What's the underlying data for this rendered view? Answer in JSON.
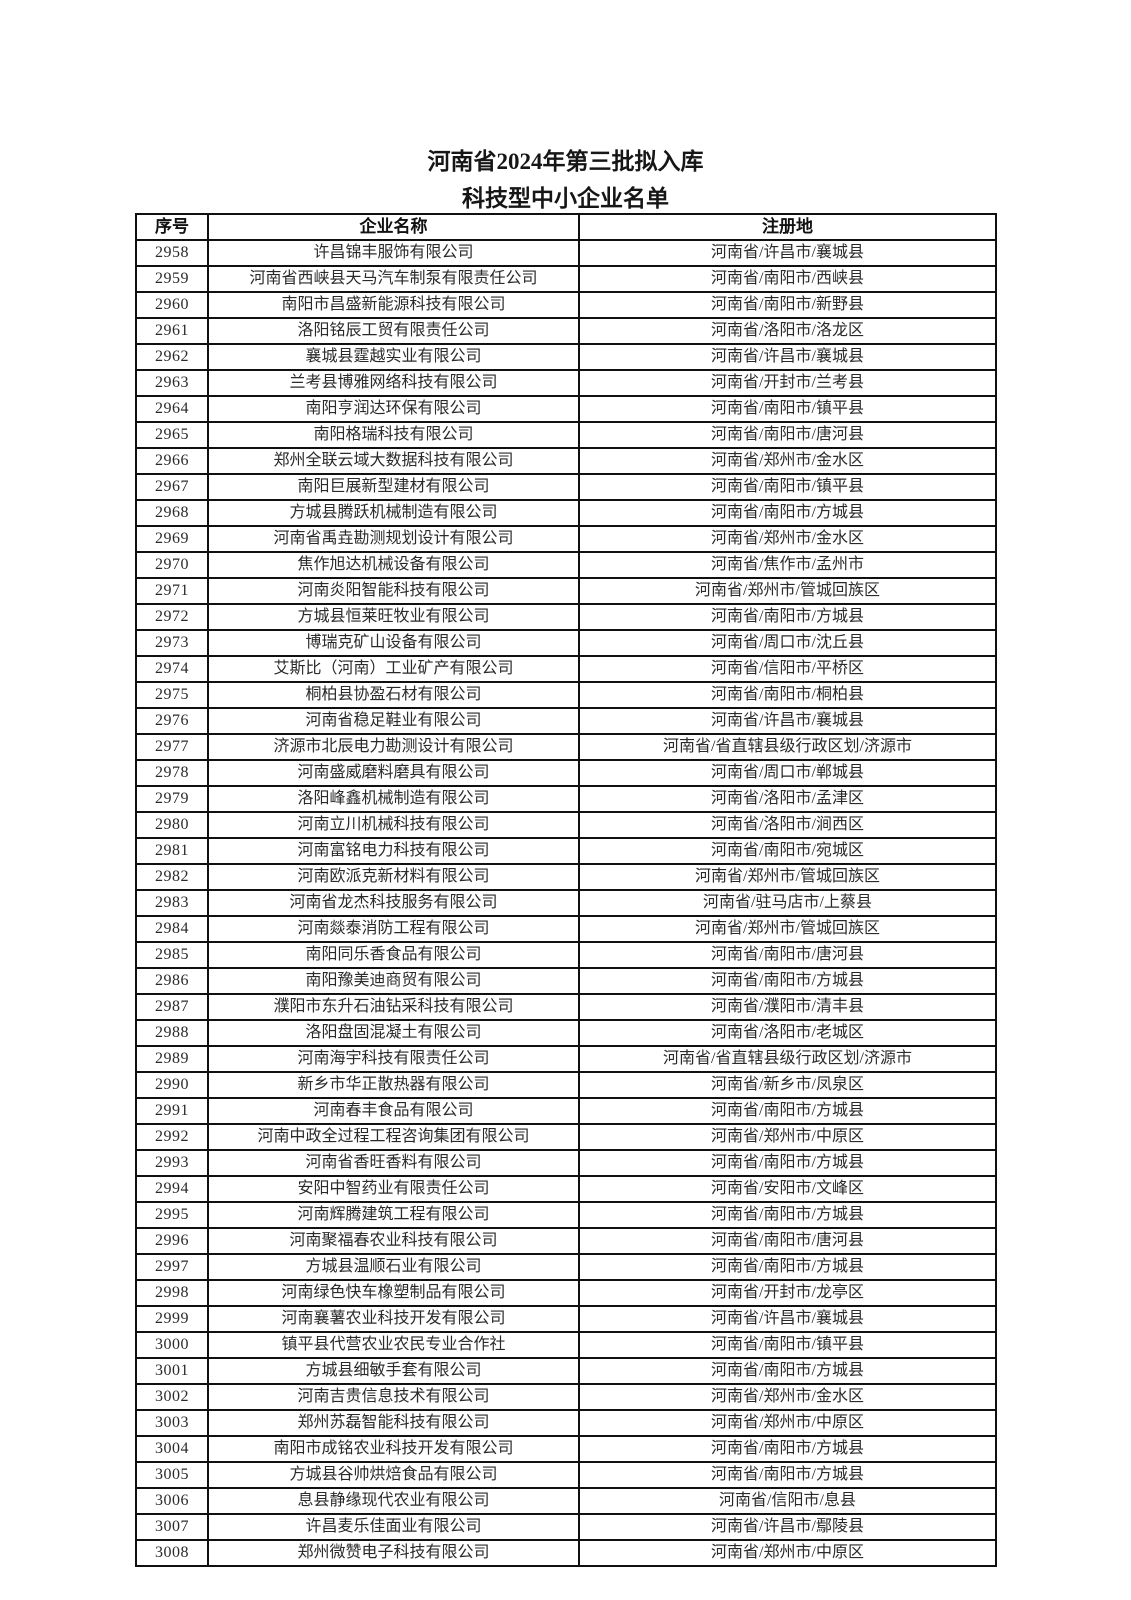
{
  "page": {
    "title_line1": "河南省2024年第三批拟入库",
    "title_line2": "科技型中小企业名单"
  },
  "table": {
    "headers": [
      "序号",
      "企业名称",
      "注册地"
    ],
    "rows": [
      {
        "no": "2958",
        "name": "许昌锦丰服饰有限公司",
        "location": "河南省/许昌市/襄城县"
      },
      {
        "no": "2959",
        "name": "河南省西峡县天马汽车制泵有限责任公司",
        "location": "河南省/南阳市/西峡县"
      },
      {
        "no": "2960",
        "name": "南阳市昌盛新能源科技有限公司",
        "location": "河南省/南阳市/新野县"
      },
      {
        "no": "2961",
        "name": "洛阳铭辰工贸有限责任公司",
        "location": "河南省/洛阳市/洛龙区"
      },
      {
        "no": "2962",
        "name": "襄城县霆越实业有限公司",
        "location": "河南省/许昌市/襄城县"
      },
      {
        "no": "2963",
        "name": "兰考县博雅网络科技有限公司",
        "location": "河南省/开封市/兰考县"
      },
      {
        "no": "2964",
        "name": "南阳亨润达环保有限公司",
        "location": "河南省/南阳市/镇平县"
      },
      {
        "no": "2965",
        "name": "南阳格瑞科技有限公司",
        "location": "河南省/南阳市/唐河县"
      },
      {
        "no": "2966",
        "name": "郑州全联云域大数据科技有限公司",
        "location": "河南省/郑州市/金水区"
      },
      {
        "no": "2967",
        "name": "南阳巨展新型建材有限公司",
        "location": "河南省/南阳市/镇平县"
      },
      {
        "no": "2968",
        "name": "方城县腾跃机械制造有限公司",
        "location": "河南省/南阳市/方城县"
      },
      {
        "no": "2969",
        "name": "河南省禹垚勘测规划设计有限公司",
        "location": "河南省/郑州市/金水区"
      },
      {
        "no": "2970",
        "name": "焦作旭达机械设备有限公司",
        "location": "河南省/焦作市/孟州市"
      },
      {
        "no": "2971",
        "name": "河南炎阳智能科技有限公司",
        "location": "河南省/郑州市/管城回族区"
      },
      {
        "no": "2972",
        "name": "方城县恒莱旺牧业有限公司",
        "location": "河南省/南阳市/方城县"
      },
      {
        "no": "2973",
        "name": "博瑞克矿山设备有限公司",
        "location": "河南省/周口市/沈丘县"
      },
      {
        "no": "2974",
        "name": "艾斯比（河南）工业矿产有限公司",
        "location": "河南省/信阳市/平桥区"
      },
      {
        "no": "2975",
        "name": "桐柏县协盈石材有限公司",
        "location": "河南省/南阳市/桐柏县"
      },
      {
        "no": "2976",
        "name": "河南省稳足鞋业有限公司",
        "location": "河南省/许昌市/襄城县"
      },
      {
        "no": "2977",
        "name": "济源市北辰电力勘测设计有限公司",
        "location": "河南省/省直辖县级行政区划/济源市"
      },
      {
        "no": "2978",
        "name": "河南盛威磨料磨具有限公司",
        "location": "河南省/周口市/郸城县"
      },
      {
        "no": "2979",
        "name": "洛阳峰鑫机械制造有限公司",
        "location": "河南省/洛阳市/孟津区"
      },
      {
        "no": "2980",
        "name": "河南立川机械科技有限公司",
        "location": "河南省/洛阳市/涧西区"
      },
      {
        "no": "2981",
        "name": "河南富铭电力科技有限公司",
        "location": "河南省/南阳市/宛城区"
      },
      {
        "no": "2982",
        "name": "河南欧派克新材料有限公司",
        "location": "河南省/郑州市/管城回族区"
      },
      {
        "no": "2983",
        "name": "河南省龙杰科技服务有限公司",
        "location": "河南省/驻马店市/上蔡县"
      },
      {
        "no": "2984",
        "name": "河南燚泰消防工程有限公司",
        "location": "河南省/郑州市/管城回族区"
      },
      {
        "no": "2985",
        "name": "南阳同乐香食品有限公司",
        "location": "河南省/南阳市/唐河县"
      },
      {
        "no": "2986",
        "name": "南阳豫美迪商贸有限公司",
        "location": "河南省/南阳市/方城县"
      },
      {
        "no": "2987",
        "name": "濮阳市东升石油钻采科技有限公司",
        "location": "河南省/濮阳市/清丰县"
      },
      {
        "no": "2988",
        "name": "洛阳盘固混凝土有限公司",
        "location": "河南省/洛阳市/老城区"
      },
      {
        "no": "2989",
        "name": "河南海宇科技有限责任公司",
        "location": "河南省/省直辖县级行政区划/济源市"
      },
      {
        "no": "2990",
        "name": "新乡市华正散热器有限公司",
        "location": "河南省/新乡市/凤泉区"
      },
      {
        "no": "2991",
        "name": "河南春丰食品有限公司",
        "location": "河南省/南阳市/方城县"
      },
      {
        "no": "2992",
        "name": "河南中政全过程工程咨询集团有限公司",
        "location": "河南省/郑州市/中原区"
      },
      {
        "no": "2993",
        "name": "河南省香旺香料有限公司",
        "location": "河南省/南阳市/方城县"
      },
      {
        "no": "2994",
        "name": "安阳中智药业有限责任公司",
        "location": "河南省/安阳市/文峰区"
      },
      {
        "no": "2995",
        "name": "河南辉腾建筑工程有限公司",
        "location": "河南省/南阳市/方城县"
      },
      {
        "no": "2996",
        "name": "河南聚福春农业科技有限公司",
        "location": "河南省/南阳市/唐河县"
      },
      {
        "no": "2997",
        "name": "方城县温顺石业有限公司",
        "location": "河南省/南阳市/方城县"
      },
      {
        "no": "2998",
        "name": "河南绿色快车橡塑制品有限公司",
        "location": "河南省/开封市/龙亭区"
      },
      {
        "no": "2999",
        "name": "河南襄薯农业科技开发有限公司",
        "location": "河南省/许昌市/襄城县"
      },
      {
        "no": "3000",
        "name": "镇平县代营农业农民专业合作社",
        "location": "河南省/南阳市/镇平县"
      },
      {
        "no": "3001",
        "name": "方城县细敏手套有限公司",
        "location": "河南省/南阳市/方城县"
      },
      {
        "no": "3002",
        "name": "河南吉贵信息技术有限公司",
        "location": "河南省/郑州市/金水区"
      },
      {
        "no": "3003",
        "name": "郑州苏磊智能科技有限公司",
        "location": "河南省/郑州市/中原区"
      },
      {
        "no": "3004",
        "name": "南阳市成铭农业科技开发有限公司",
        "location": "河南省/南阳市/方城县"
      },
      {
        "no": "3005",
        "name": "方城县谷帅烘焙食品有限公司",
        "location": "河南省/南阳市/方城县"
      },
      {
        "no": "3006",
        "name": "息县静缘现代农业有限公司",
        "location": "河南省/信阳市/息县"
      },
      {
        "no": "3007",
        "name": "许昌麦乐佳面业有限公司",
        "location": "河南省/许昌市/鄢陵县"
      },
      {
        "no": "3008",
        "name": "郑州微赞电子科技有限公司",
        "location": "河南省/郑州市/中原区"
      }
    ]
  }
}
